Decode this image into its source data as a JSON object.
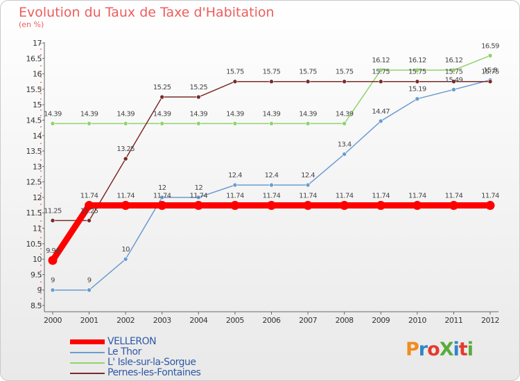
{
  "title": "Evolution du Taux de Taxe d'Habitation",
  "subtitle": "(en %)",
  "logo": {
    "text": "ProXiti",
    "colors": [
      "#f28c1e",
      "#2e86c8",
      "#e33b2e",
      "#5aab3c",
      "#2e86c8",
      "#e33b2e",
      "#5aab3c"
    ]
  },
  "chart_data": {
    "type": "line",
    "x": [
      "2000",
      "2001",
      "2002",
      "2003",
      "2004",
      "2005",
      "2006",
      "2007",
      "2008",
      "2009",
      "2010",
      "2011",
      "2012"
    ],
    "ylim": [
      8.5,
      17
    ],
    "yticks": [
      8.5,
      9,
      9.5,
      10,
      10.5,
      11,
      11.5,
      12,
      12.5,
      13,
      13.5,
      14,
      14.5,
      15,
      15.5,
      16,
      16.5,
      17
    ],
    "grid": false,
    "series": [
      {
        "name": "VELLERON",
        "color": "#ff0000",
        "values": [
          9.96,
          11.74,
          11.74,
          11.74,
          11.74,
          11.74,
          11.74,
          11.74,
          11.74,
          11.74,
          11.74,
          11.74,
          11.74
        ],
        "labels": [
          "9.96",
          "11.74",
          "11.74",
          "11.74",
          "11.74",
          "11.74",
          "11.74",
          "11.74",
          "11.74",
          "11.74",
          "11.74",
          "11.74",
          "11.74"
        ]
      },
      {
        "name": "Le Thor",
        "color": "#6b9bd1",
        "values": [
          9,
          9,
          10,
          12,
          12,
          12.4,
          12.4,
          12.4,
          13.4,
          14.47,
          15.19,
          15.49,
          15.8
        ],
        "labels": [
          "9",
          "9",
          "10",
          "12",
          "12",
          "12.4",
          "12.4",
          "12.4",
          "13.4",
          "14.47",
          "15.19",
          "15.49",
          "15.8"
        ]
      },
      {
        "name": "L' Isle-sur-la-Sorgue",
        "color": "#8fd46a",
        "values": [
          14.39,
          14.39,
          14.39,
          14.39,
          14.39,
          14.39,
          14.39,
          14.39,
          14.39,
          16.12,
          16.12,
          16.12,
          16.59
        ],
        "labels": [
          "14.39",
          "14.39",
          "14.39",
          "14.39",
          "14.39",
          "14.39",
          "14.39",
          "14.39",
          "14.39",
          "16.12",
          "16.12",
          "16.12",
          "16.59"
        ]
      },
      {
        "name": "Pernes-les-Fontaines",
        "color": "#7a2b2b",
        "values": [
          11.25,
          11.25,
          13.25,
          15.25,
          15.25,
          15.75,
          15.75,
          15.75,
          15.75,
          15.75,
          15.75,
          15.75,
          15.75
        ],
        "labels": [
          "11.25",
          "11.25",
          "13.25",
          "15.25",
          "15.25",
          "15.75",
          "15.75",
          "15.75",
          "15.75",
          "15.75",
          "15.75",
          "15.75",
          "15.75"
        ]
      }
    ]
  }
}
